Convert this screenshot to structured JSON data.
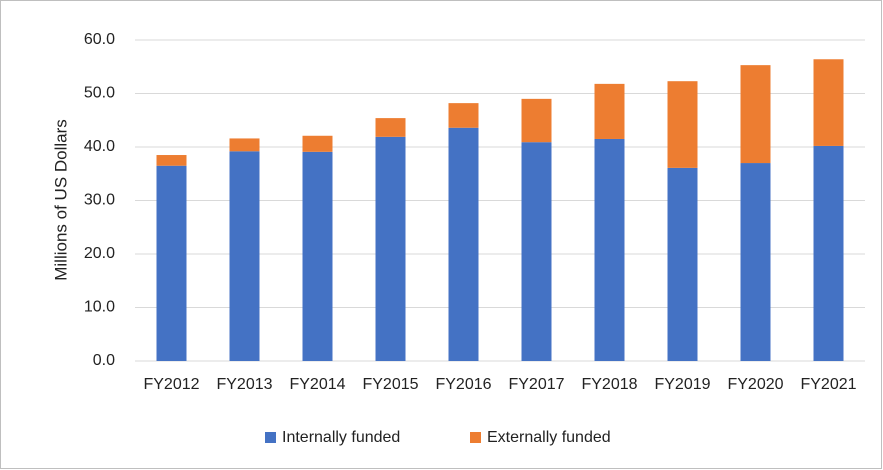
{
  "chart_data": {
    "type": "stacked_bar",
    "y_axis_label": "Millions of US Dollars",
    "categories": [
      "FY2012",
      "FY2013",
      "FY2014",
      "FY2015",
      "FY2016",
      "FY2017",
      "FY2018",
      "FY2019",
      "FY2020",
      "FY2021"
    ],
    "series": [
      {
        "name": "Internally funded",
        "color": "#4472c4",
        "values": [
          36.5,
          39.2,
          39.1,
          41.9,
          43.6,
          40.9,
          41.5,
          36.1,
          37.0,
          40.2
        ]
      },
      {
        "name": "Externally funded",
        "color": "#ed7d31",
        "values": [
          2.0,
          2.4,
          3.0,
          3.5,
          4.6,
          8.1,
          10.3,
          16.2,
          18.3,
          16.2
        ]
      }
    ],
    "ylim": [
      0,
      60
    ],
    "yticks": [
      {
        "value": 0,
        "label": "0.0"
      },
      {
        "value": 10,
        "label": "10.0"
      },
      {
        "value": 20,
        "label": "20.0"
      },
      {
        "value": 30,
        "label": "30.0"
      },
      {
        "value": 40,
        "label": "40.0"
      },
      {
        "value": 50,
        "label": "50.0"
      },
      {
        "value": 60,
        "label": "60.0"
      }
    ],
    "grid": true,
    "legend": "bottom"
  }
}
